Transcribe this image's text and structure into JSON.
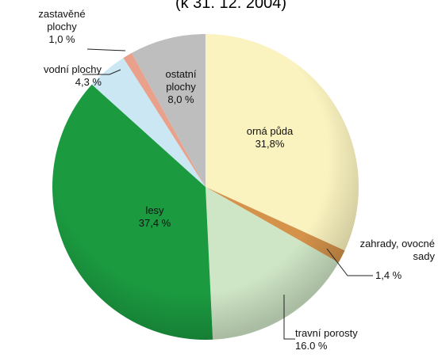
{
  "chart_data": {
    "type": "pie",
    "title": "(k 31. 12. 2004)",
    "categories": [
      "orná půda",
      "zahrady, ovocné sady",
      "travní porosty",
      "lesy",
      "vodní plochy",
      "zastavěné plochy",
      "ostatní plochy"
    ],
    "values": [
      31.8,
      1.4,
      16.0,
      37.4,
      4.3,
      1.0,
      8.0
    ],
    "value_labels": [
      "31,8%",
      "1,4 %",
      "16.0 %",
      "37,4 %",
      "4,3 %",
      "1,0 %",
      "8,0 %"
    ],
    "colors": [
      "#fbf3bf",
      "#d4924a",
      "#cfe6c6",
      "#1b9a40",
      "#cbe7f3",
      "#e9a18b",
      "#bebebe"
    ]
  }
}
